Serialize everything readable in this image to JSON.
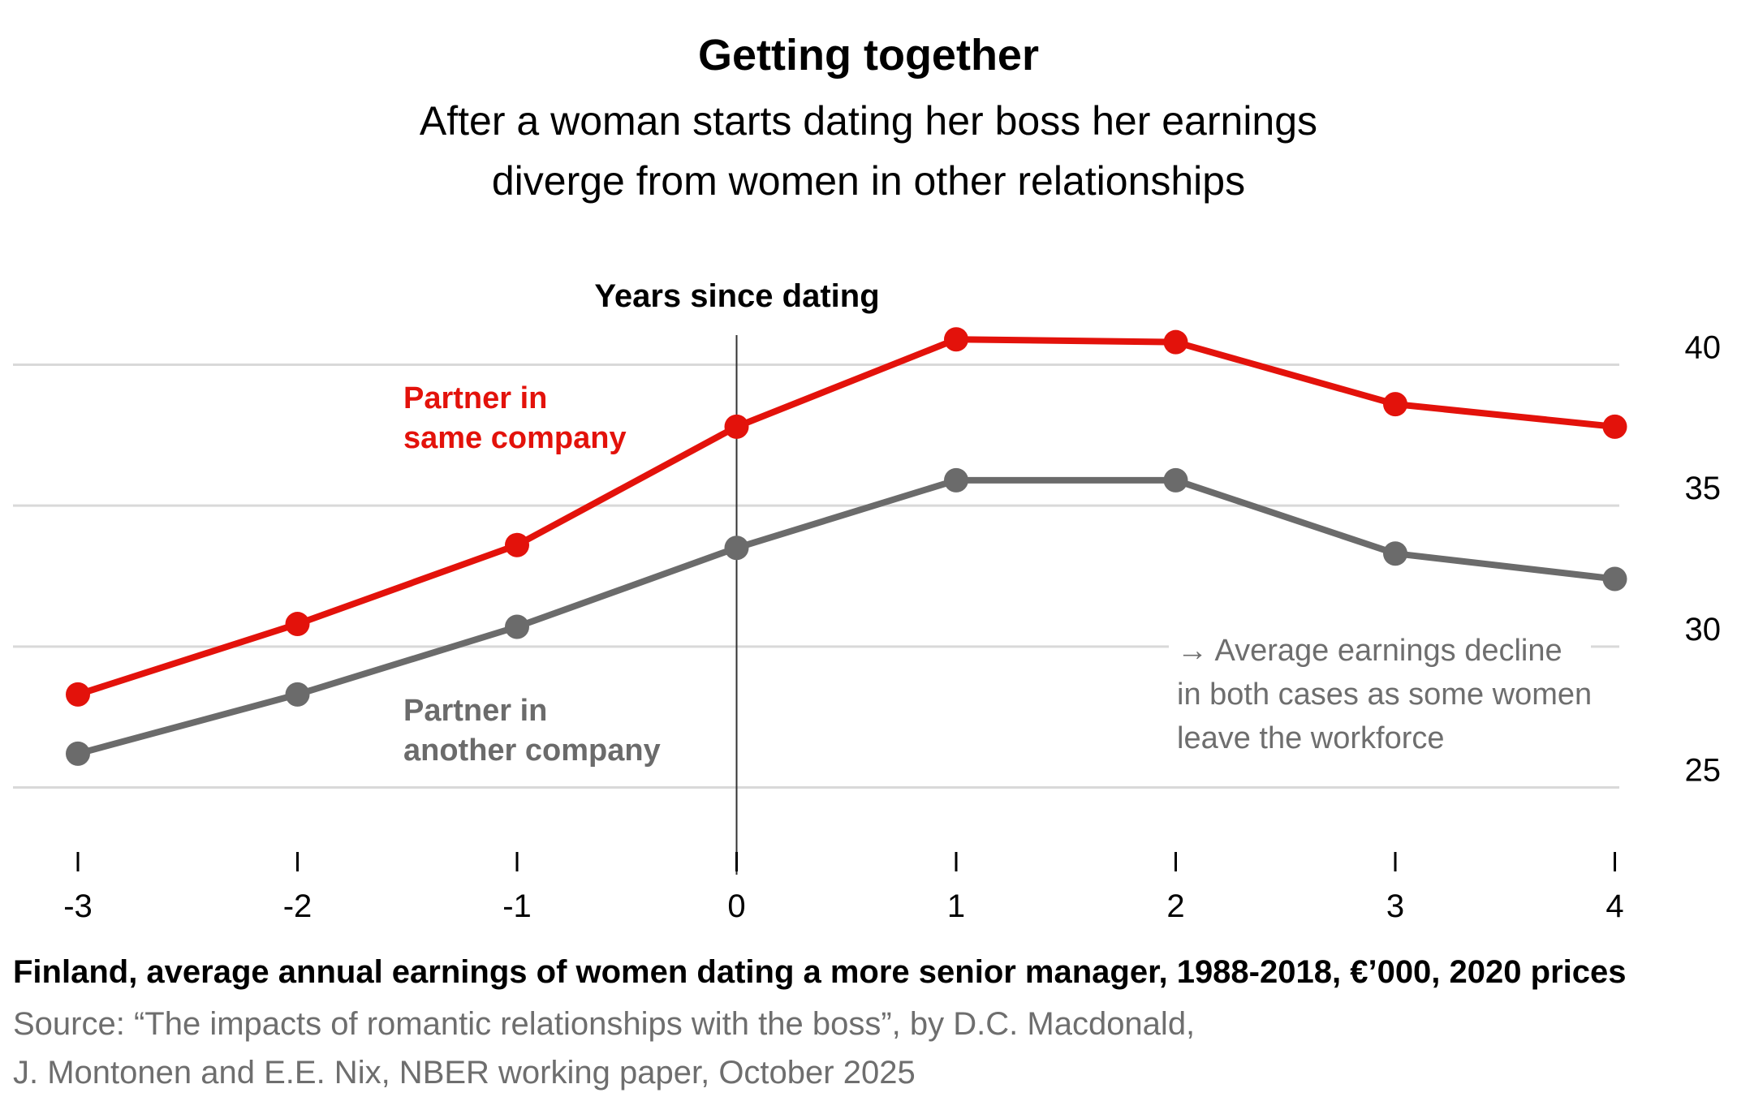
{
  "title": "Getting together",
  "subtitle_lines": [
    "After a woman starts dating her boss her earnings",
    "diverge from women in other relationships"
  ],
  "footnote": "Finland, average annual earnings of women dating a more senior manager, 1988-2018, €’000, 2020 prices",
  "source_lines": [
    "Source: “The impacts of romantic relationships with the boss”, by D.C. Macdonald,",
    "J. Montonen and E.E. Nix, NBER working paper, October 2025"
  ],
  "colors": {
    "same_company": "#e3120b",
    "other_company": "#6b6b6b",
    "grid": "#d9d9d9",
    "annotation": "#6e6e6e"
  },
  "chart_data": {
    "type": "line",
    "x_axis_title": "Years since dating",
    "x": [
      -3,
      -2,
      -1,
      0,
      1,
      2,
      3,
      4
    ],
    "x_tick_labels": [
      "-3",
      "-2",
      "-1",
      "0",
      "1",
      "2",
      "3",
      "4"
    ],
    "ylim": [
      23,
      42
    ],
    "y_ticks": [
      25,
      30,
      35,
      40
    ],
    "y_tick_labels": [
      "25",
      "30",
      "35",
      "40"
    ],
    "y_axis_side": "right",
    "grid": "horizontal",
    "reference_line_x": 0,
    "series": [
      {
        "label_lines": [
          "Partner in",
          "same company"
        ],
        "color": "#e3120b",
        "values": [
          28.3,
          30.8,
          33.6,
          37.8,
          40.9,
          40.8,
          38.6,
          37.8
        ]
      },
      {
        "label_lines": [
          "Partner in",
          "another company"
        ],
        "color": "#6b6b6b",
        "values": [
          26.2,
          28.3,
          30.7,
          33.5,
          35.9,
          35.9,
          33.3,
          32.4
        ]
      }
    ],
    "annotation_lines": [
      "→ Average earnings decline",
      "in both cases as some women",
      "leave the workforce"
    ]
  }
}
